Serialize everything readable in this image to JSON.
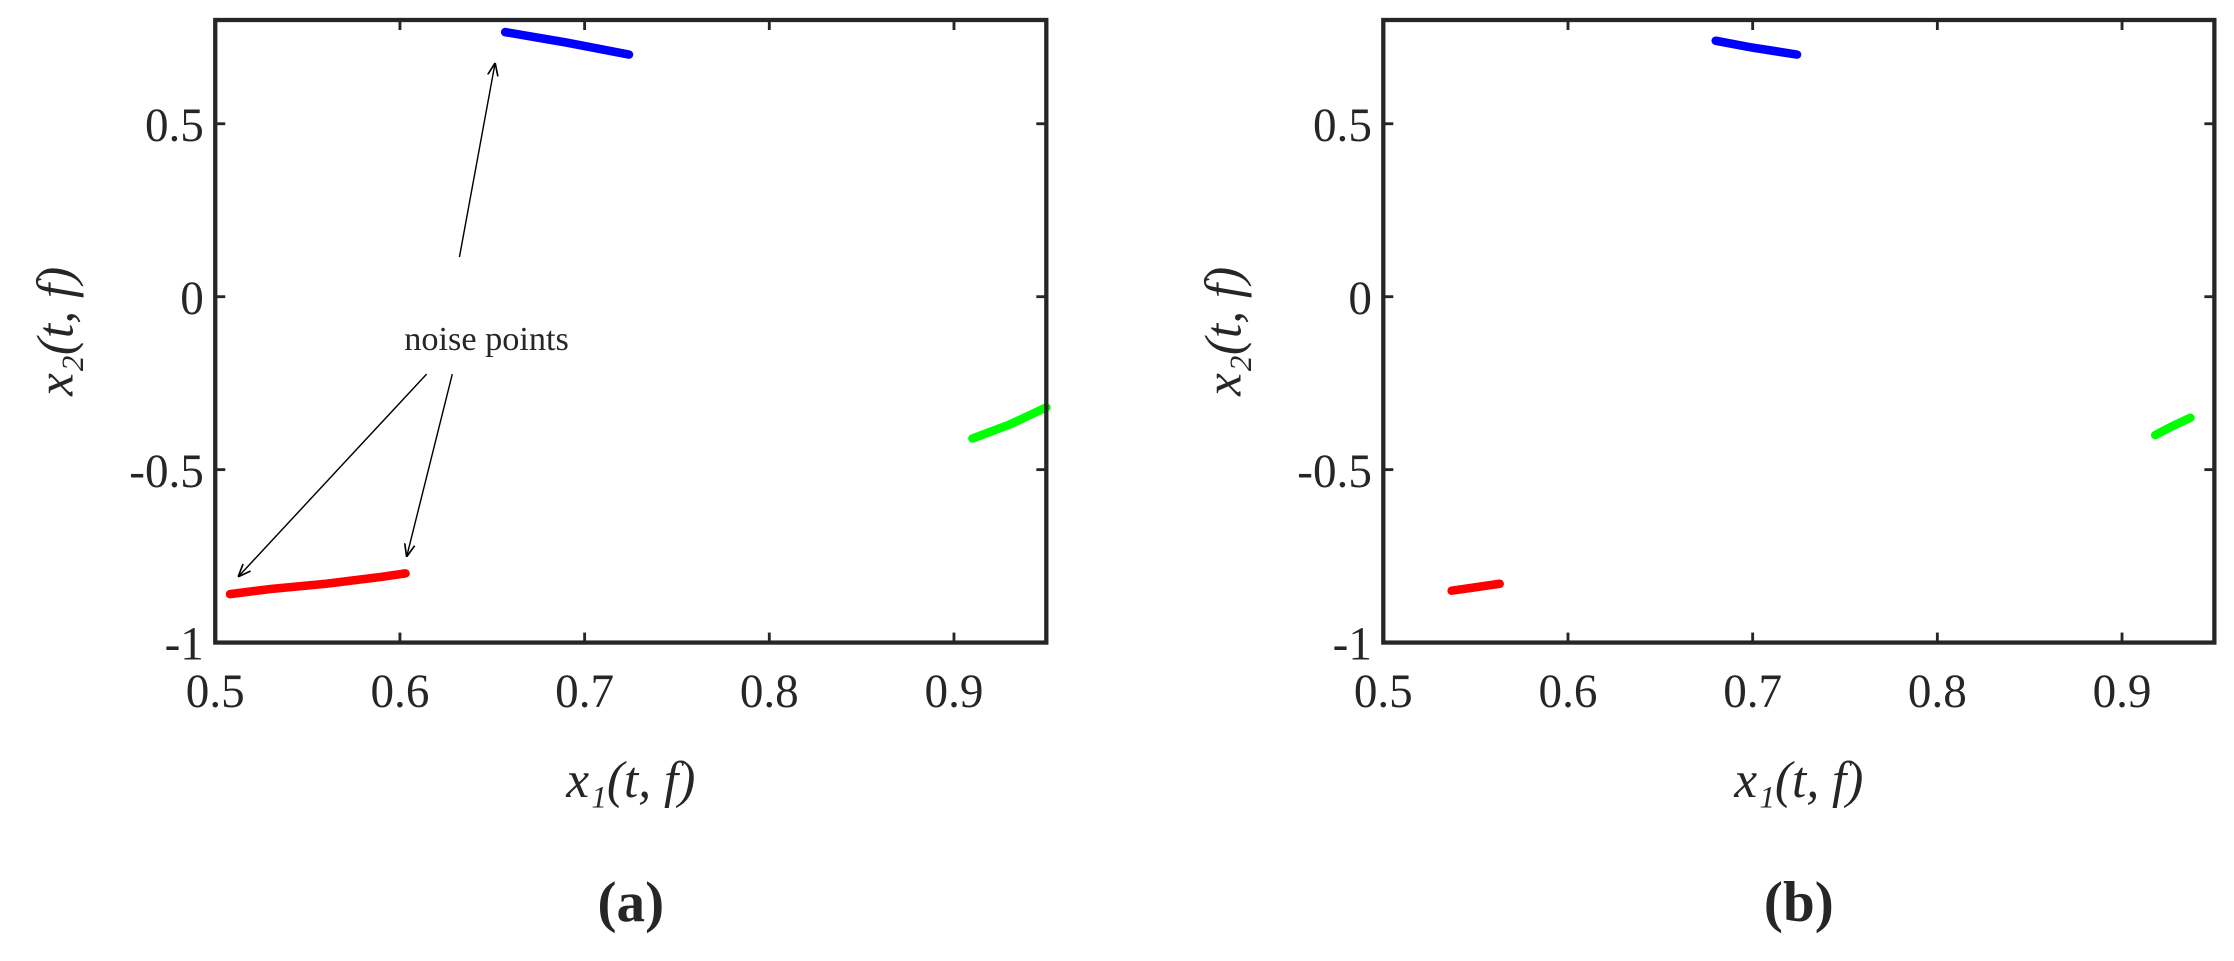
{
  "chart_data": [
    {
      "type": "line",
      "subplot_label": "(a)",
      "xlabel": "x₁(t, f)",
      "ylabel": "x₂(t, f)",
      "annotation": "noise points",
      "xlim": [
        0.5,
        0.95
      ],
      "ylim": [
        -1,
        0.8
      ],
      "xticks": [
        0.5,
        0.6,
        0.7,
        0.8,
        0.9
      ],
      "yticks": [
        -1,
        -0.5,
        0,
        0.5
      ],
      "series": [
        {
          "color": "#0000ff",
          "x": [
            0.657,
            0.69,
            0.724
          ],
          "values": [
            0.765,
            0.735,
            0.7
          ]
        },
        {
          "color": "#ff0000",
          "x": [
            0.508,
            0.53,
            0.56,
            0.59,
            0.603
          ],
          "values": [
            -0.86,
            -0.845,
            -0.83,
            -0.81,
            -0.8
          ]
        },
        {
          "color": "#00ff00",
          "x": [
            0.91,
            0.93,
            0.95
          ],
          "values": [
            -0.41,
            -0.37,
            -0.32
          ]
        }
      ]
    },
    {
      "type": "line",
      "subplot_label": "(b)",
      "xlabel": "x₁(t, f)",
      "ylabel": "x₂(t, f)",
      "xlim": [
        0.5,
        0.95
      ],
      "ylim": [
        -1,
        0.8
      ],
      "xticks": [
        0.5,
        0.6,
        0.7,
        0.8,
        0.9
      ],
      "yticks": [
        -1,
        -0.5,
        0,
        0.5
      ],
      "series": [
        {
          "color": "#0000ff",
          "x": [
            0.68,
            0.7,
            0.724
          ],
          "values": [
            0.74,
            0.72,
            0.7
          ]
        },
        {
          "color": "#ff0000",
          "x": [
            0.537,
            0.55,
            0.563
          ],
          "values": [
            -0.85,
            -0.84,
            -0.83
          ]
        },
        {
          "color": "#00ff00",
          "x": [
            0.918,
            0.927,
            0.937
          ],
          "values": [
            -0.4,
            -0.375,
            -0.35
          ]
        }
      ]
    }
  ]
}
